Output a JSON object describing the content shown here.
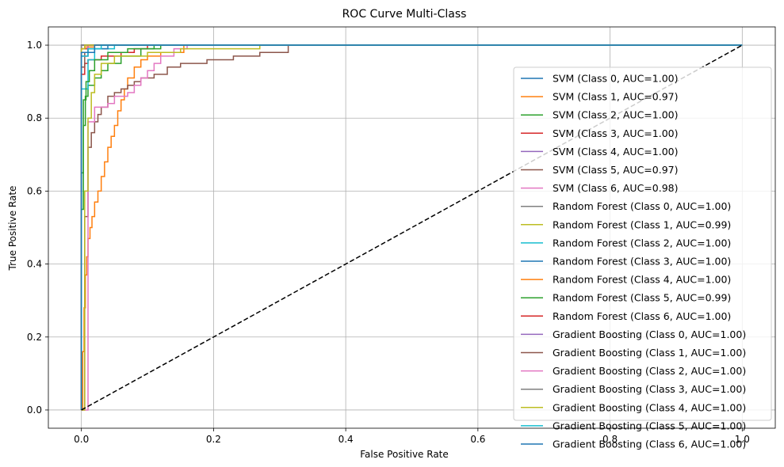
{
  "chart_data": {
    "type": "line",
    "title": "ROC Curve Multi-Class",
    "xlabel": "False Positive Rate",
    "ylabel": "True Positive Rate",
    "xlim": [
      -0.05,
      1.05
    ],
    "ylim": [
      -0.05,
      1.05
    ],
    "xticks": [
      "0.0",
      "0.2",
      "0.4",
      "0.6",
      "0.8",
      "1.0"
    ],
    "yticks": [
      "0.0",
      "0.2",
      "0.4",
      "0.6",
      "0.8",
      "1.0"
    ],
    "grid": true,
    "legend_position": "right",
    "baseline": {
      "x": [
        0,
        1
      ],
      "y": [
        0,
        1
      ],
      "color": "#000000",
      "style": "dashed"
    },
    "series": [
      {
        "name": "SVM (Class 0, AUC=1.00)",
        "color": "#1f77b4",
        "x": [
          0,
          0,
          1
        ],
        "y": [
          0,
          1,
          1
        ]
      },
      {
        "name": "SVM (Class 1, AUC=0.97)",
        "color": "#ff7f0e",
        "x": [
          0,
          0.002,
          0.002,
          0.004,
          0.004,
          0.006,
          0.006,
          0.008,
          0.008,
          0.01,
          0.01,
          0.013,
          0.013,
          0.016,
          0.016,
          0.02,
          0.02,
          0.025,
          0.025,
          0.03,
          0.03,
          0.035,
          0.035,
          0.04,
          0.04,
          0.045,
          0.045,
          0.05,
          0.05,
          0.055,
          0.055,
          0.06,
          0.06,
          0.065,
          0.065,
          0.07,
          0.07,
          0.08,
          0.08,
          0.09,
          0.09,
          0.1,
          0.1,
          0.12,
          0.12,
          0.155,
          0.155,
          1
        ],
        "y": [
          0,
          0,
          0.16,
          0.16,
          0.28,
          0.28,
          0.37,
          0.37,
          0.42,
          0.42,
          0.47,
          0.47,
          0.5,
          0.5,
          0.53,
          0.53,
          0.57,
          0.57,
          0.6,
          0.6,
          0.64,
          0.64,
          0.68,
          0.68,
          0.72,
          0.72,
          0.75,
          0.75,
          0.78,
          0.78,
          0.82,
          0.82,
          0.85,
          0.85,
          0.88,
          0.88,
          0.91,
          0.91,
          0.94,
          0.94,
          0.96,
          0.96,
          0.97,
          0.97,
          0.98,
          0.98,
          1,
          1
        ]
      },
      {
        "name": "SVM (Class 2, AUC=1.00)",
        "color": "#2ca02c",
        "x": [
          0,
          0,
          0.003,
          0.003,
          0.006,
          0.006,
          0.01,
          0.01,
          0.02,
          0.02,
          0.03,
          0.03,
          0.04,
          0.04,
          0.06,
          0.06,
          0.09,
          0.09,
          0.11,
          0.11,
          1
        ],
        "y": [
          0,
          0.55,
          0.55,
          0.78,
          0.78,
          0.86,
          0.86,
          0.89,
          0.89,
          0.91,
          0.91,
          0.93,
          0.93,
          0.95,
          0.95,
          0.97,
          0.97,
          0.99,
          0.99,
          1,
          1
        ]
      },
      {
        "name": "SVM (Class 3, AUC=1.00)",
        "color": "#d62728",
        "x": [
          0,
          0,
          0.005,
          0.005,
          0.01,
          0.01,
          0.03,
          0.03,
          0.06,
          0.06,
          0.08,
          0.08,
          0.1,
          0.1,
          1
        ],
        "y": [
          0,
          0.92,
          0.92,
          0.95,
          0.95,
          0.96,
          0.96,
          0.97,
          0.97,
          0.98,
          0.98,
          0.99,
          0.99,
          1,
          1
        ]
      },
      {
        "name": "SVM (Class 4, AUC=1.00)",
        "color": "#9467bd",
        "x": [
          0,
          0,
          0.01,
          0.01,
          1
        ],
        "y": [
          0,
          0.98,
          0.98,
          1,
          1
        ]
      },
      {
        "name": "SVM (Class 5, AUC=0.97)",
        "color": "#8c564b",
        "x": [
          0,
          0.005,
          0.005,
          0.01,
          0.01,
          0.015,
          0.015,
          0.02,
          0.02,
          0.025,
          0.025,
          0.03,
          0.03,
          0.04,
          0.04,
          0.05,
          0.05,
          0.06,
          0.06,
          0.07,
          0.07,
          0.08,
          0.08,
          0.09,
          0.09,
          0.11,
          0.11,
          0.13,
          0.13,
          0.15,
          0.15,
          0.19,
          0.19,
          0.23,
          0.23,
          0.27,
          0.27,
          0.313,
          0.313,
          1
        ],
        "y": [
          0,
          0,
          0.53,
          0.53,
          0.72,
          0.72,
          0.76,
          0.76,
          0.79,
          0.79,
          0.81,
          0.81,
          0.83,
          0.83,
          0.86,
          0.86,
          0.87,
          0.87,
          0.88,
          0.88,
          0.89,
          0.89,
          0.9,
          0.9,
          0.91,
          0.91,
          0.92,
          0.92,
          0.94,
          0.94,
          0.95,
          0.95,
          0.96,
          0.96,
          0.97,
          0.97,
          0.98,
          0.98,
          1,
          1
        ]
      },
      {
        "name": "SVM (Class 6, AUC=0.98)",
        "color": "#e377c2",
        "x": [
          0,
          0.01,
          0.01,
          0.02,
          0.02,
          0.04,
          0.04,
          0.05,
          0.05,
          0.07,
          0.07,
          0.08,
          0.08,
          0.09,
          0.09,
          0.1,
          0.1,
          0.11,
          0.11,
          0.12,
          0.12,
          0.14,
          0.14,
          0.16,
          0.16,
          1
        ],
        "y": [
          0,
          0,
          0.79,
          0.79,
          0.83,
          0.83,
          0.84,
          0.84,
          0.86,
          0.86,
          0.87,
          0.87,
          0.89,
          0.89,
          0.91,
          0.91,
          0.93,
          0.93,
          0.95,
          0.95,
          0.97,
          0.97,
          0.99,
          0.99,
          1,
          1
        ]
      },
      {
        "name": "Random Forest (Class 0, AUC=1.00)",
        "color": "#7f7f7f",
        "x": [
          0,
          0,
          1
        ],
        "y": [
          0,
          1,
          1
        ]
      },
      {
        "name": "Random Forest (Class 1, AUC=0.99)",
        "color": "#bcbd22",
        "x": [
          0,
          0.005,
          0.005,
          0.01,
          0.01,
          0.015,
          0.015,
          0.02,
          0.02,
          0.03,
          0.03,
          0.05,
          0.05,
          0.1,
          0.1,
          0.15,
          0.15,
          0.27,
          0.27,
          1
        ],
        "y": [
          0,
          0,
          0.6,
          0.6,
          0.8,
          0.8,
          0.87,
          0.87,
          0.92,
          0.92,
          0.95,
          0.95,
          0.97,
          0.97,
          0.98,
          0.98,
          0.99,
          0.99,
          1,
          1
        ]
      },
      {
        "name": "Random Forest (Class 2, AUC=1.00)",
        "color": "#17becf",
        "x": [
          0,
          0,
          0.01,
          0.01,
          0.02,
          0.02,
          0.05,
          0.05,
          1
        ],
        "y": [
          0,
          0.88,
          0.88,
          0.96,
          0.96,
          0.99,
          0.99,
          1,
          1
        ]
      },
      {
        "name": "Random Forest (Class 3, AUC=1.00)",
        "color": "#1f77b4",
        "x": [
          0,
          0,
          0.01,
          0.01,
          0.04,
          0.04,
          1
        ],
        "y": [
          0,
          0.97,
          0.97,
          0.99,
          0.99,
          1,
          1
        ]
      },
      {
        "name": "Random Forest (Class 4, AUC=1.00)",
        "color": "#ff7f0e",
        "x": [
          0,
          0,
          0.005,
          0.005,
          0.02,
          0.02,
          1
        ],
        "y": [
          0,
          0.99,
          0.99,
          0.995,
          0.995,
          1,
          1
        ]
      },
      {
        "name": "Random Forest (Class 5, AUC=0.99)",
        "color": "#2ca02c",
        "x": [
          0,
          0,
          0.003,
          0.003,
          0.007,
          0.007,
          0.012,
          0.012,
          0.02,
          0.02,
          0.04,
          0.04,
          0.07,
          0.07,
          0.12,
          0.12,
          1
        ],
        "y": [
          0,
          0.65,
          0.65,
          0.85,
          0.85,
          0.9,
          0.9,
          0.93,
          0.93,
          0.96,
          0.96,
          0.98,
          0.98,
          0.99,
          0.99,
          1,
          1
        ]
      },
      {
        "name": "Random Forest (Class 6, AUC=1.00)",
        "color": "#d62728",
        "x": [
          0,
          0,
          0.01,
          0.01,
          1
        ],
        "y": [
          0,
          0.99,
          0.99,
          1,
          1
        ]
      },
      {
        "name": "Gradient Boosting (Class 0, AUC=1.00)",
        "color": "#9467bd",
        "x": [
          0,
          0,
          1
        ],
        "y": [
          0,
          1,
          1
        ]
      },
      {
        "name": "Gradient Boosting (Class 1, AUC=1.00)",
        "color": "#8c564b",
        "x": [
          0,
          0,
          0.005,
          0.005,
          0.01,
          0.01,
          1
        ],
        "y": [
          0,
          0.94,
          0.94,
          0.98,
          0.98,
          1,
          1
        ]
      },
      {
        "name": "Gradient Boosting (Class 2, AUC=1.00)",
        "color": "#e377c2",
        "x": [
          0,
          0,
          0.01,
          0.01,
          1
        ],
        "y": [
          0,
          0.97,
          0.97,
          1,
          1
        ]
      },
      {
        "name": "Gradient Boosting (Class 3, AUC=1.00)",
        "color": "#7f7f7f",
        "x": [
          0,
          0,
          1
        ],
        "y": [
          0,
          1,
          1
        ]
      },
      {
        "name": "Gradient Boosting (Class 4, AUC=1.00)",
        "color": "#bcbd22",
        "x": [
          0,
          0,
          0.005,
          0.005,
          1
        ],
        "y": [
          0,
          0.99,
          0.99,
          1,
          1
        ]
      },
      {
        "name": "Gradient Boosting (Class 5, AUC=1.00)",
        "color": "#17becf",
        "x": [
          0,
          0,
          0.01,
          0.01,
          0.03,
          0.03,
          1
        ],
        "y": [
          0,
          0.97,
          0.97,
          0.99,
          0.99,
          1,
          1
        ]
      },
      {
        "name": "Gradient Boosting (Class 6, AUC=1.00)",
        "color": "#1f77b4",
        "x": [
          0,
          0,
          0.02,
          0.02,
          1
        ],
        "y": [
          0,
          0.98,
          0.98,
          1,
          1
        ]
      }
    ]
  }
}
